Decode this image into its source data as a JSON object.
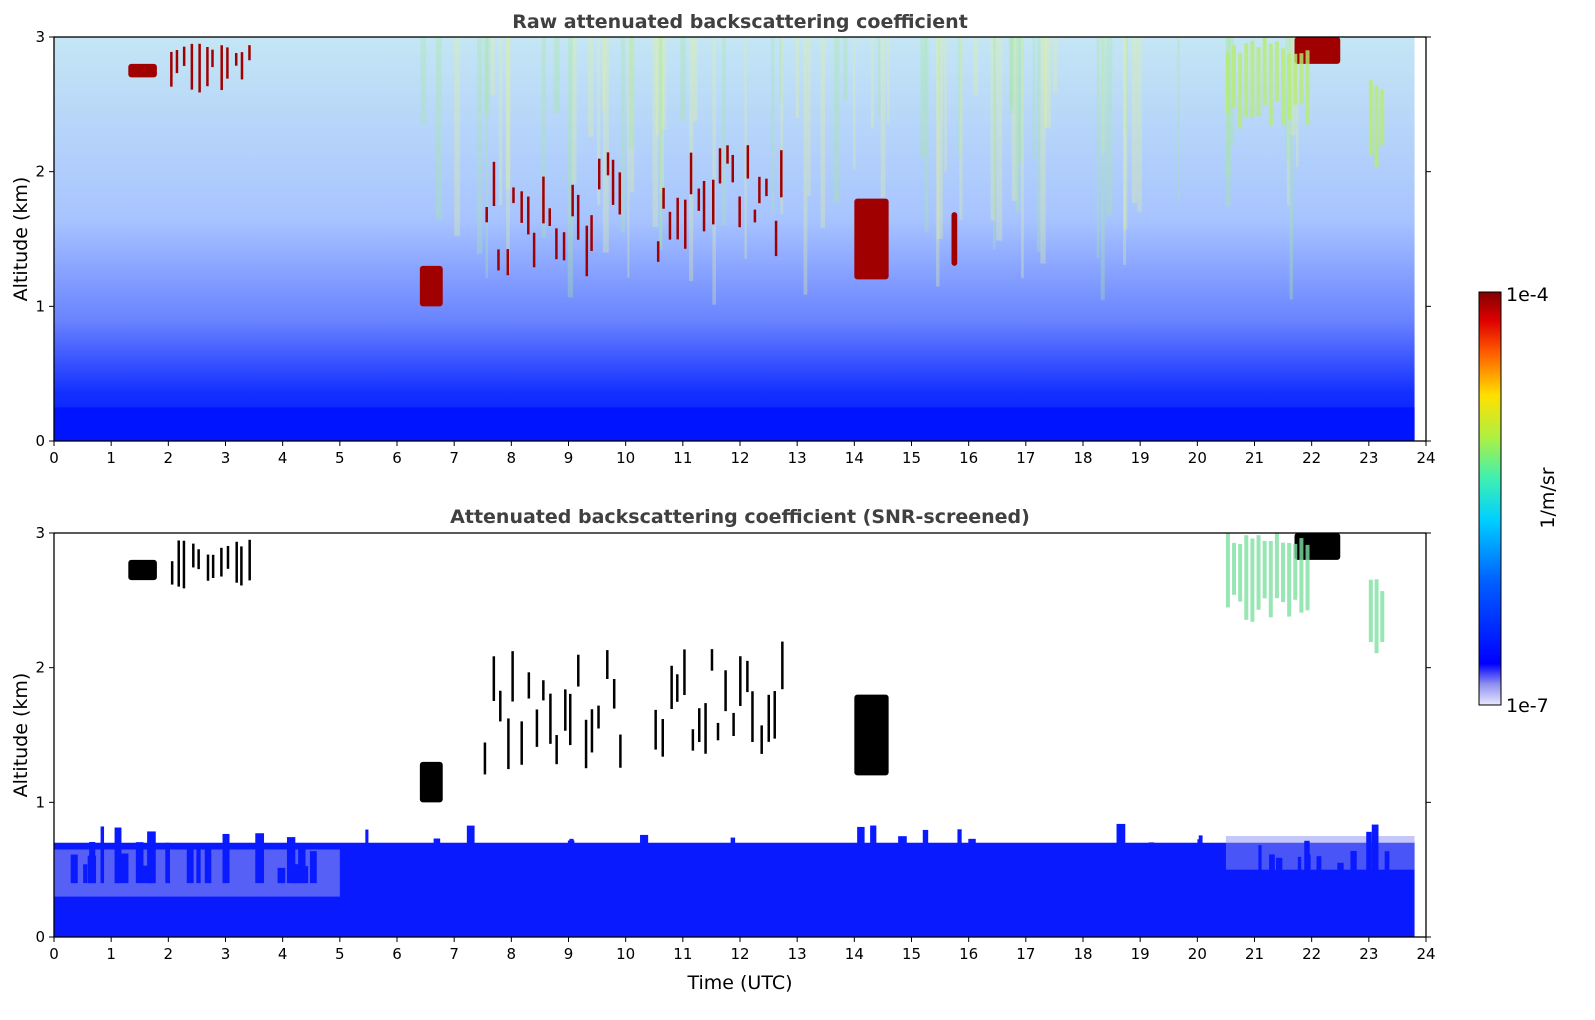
{
  "chart_data": [
    {
      "type": "heatmap",
      "title": "Raw attenuated backscattering coefficient",
      "xlabel": "",
      "ylabel": "Altitude (km)",
      "xlim": [
        0,
        24
      ],
      "ylim": [
        0,
        3
      ],
      "xticks": [
        "0",
        "1",
        "2",
        "3",
        "4",
        "5",
        "6",
        "7",
        "8",
        "9",
        "10",
        "11",
        "12",
        "13",
        "14",
        "15",
        "16",
        "17",
        "18",
        "19",
        "20",
        "21",
        "22",
        "23",
        "24"
      ],
      "yticks": [
        "0",
        "1",
        "2",
        "3"
      ],
      "scale": "log",
      "features": [
        {
          "kind": "cloud",
          "t": [
            1.3,
            1.8
          ],
          "alt": [
            2.7,
            2.8
          ],
          "level": "high"
        },
        {
          "kind": "cloud",
          "t": [
            2.0,
            3.5
          ],
          "alt": [
            2.6,
            2.95
          ],
          "level": "high"
        },
        {
          "kind": "cloud",
          "t": [
            6.4,
            6.8
          ],
          "alt": [
            1.0,
            1.3
          ],
          "level": "high"
        },
        {
          "kind": "cloud",
          "t": [
            7.5,
            10.0
          ],
          "alt": [
            1.2,
            2.2
          ],
          "level": "high"
        },
        {
          "kind": "cloud",
          "t": [
            10.5,
            12.8
          ],
          "alt": [
            1.3,
            2.2
          ],
          "level": "high"
        },
        {
          "kind": "cloud",
          "t": [
            14.0,
            14.6
          ],
          "alt": [
            1.2,
            1.8
          ],
          "level": "high"
        },
        {
          "kind": "cloud",
          "t": [
            15.7,
            15.8
          ],
          "alt": [
            1.3,
            1.7
          ],
          "level": "high"
        },
        {
          "kind": "cloud",
          "t": [
            21.7,
            22.5
          ],
          "alt": [
            2.8,
            3.0
          ],
          "level": "high"
        },
        {
          "kind": "cirrus",
          "t": [
            20.5,
            22.0
          ],
          "alt": [
            2.3,
            3.0
          ],
          "level": "medium"
        },
        {
          "kind": "cirrus",
          "t": [
            23.0,
            23.3
          ],
          "alt": [
            2.0,
            2.7
          ],
          "level": "medium"
        },
        {
          "kind": "boundary_layer",
          "t": [
            0,
            23.8
          ],
          "alt": [
            0,
            0.6
          ],
          "level": "low"
        }
      ]
    },
    {
      "type": "heatmap",
      "title": "Attenuated backscattering coefficient (SNR-screened)",
      "xlabel": "Time (UTC)",
      "ylabel": "Altitude (km)",
      "xlim": [
        0,
        24
      ],
      "ylim": [
        0,
        3
      ],
      "xticks": [
        "0",
        "1",
        "2",
        "3",
        "4",
        "5",
        "6",
        "7",
        "8",
        "9",
        "10",
        "11",
        "12",
        "13",
        "14",
        "15",
        "16",
        "17",
        "18",
        "19",
        "20",
        "21",
        "22",
        "23",
        "24"
      ],
      "yticks": [
        "0",
        "1",
        "2",
        "3"
      ],
      "scale": "log",
      "features": [
        {
          "kind": "cloud",
          "t": [
            1.3,
            1.8
          ],
          "alt": [
            2.65,
            2.8
          ],
          "level": "saturated"
        },
        {
          "kind": "cloud",
          "t": [
            2.0,
            3.5
          ],
          "alt": [
            2.6,
            2.95
          ],
          "level": "saturated"
        },
        {
          "kind": "cloud",
          "t": [
            6.4,
            6.8
          ],
          "alt": [
            1.0,
            1.3
          ],
          "level": "saturated"
        },
        {
          "kind": "cloud",
          "t": [
            7.5,
            10.0
          ],
          "alt": [
            1.2,
            2.2
          ],
          "level": "saturated"
        },
        {
          "kind": "cloud",
          "t": [
            10.5,
            12.8
          ],
          "alt": [
            1.3,
            2.2
          ],
          "level": "saturated"
        },
        {
          "kind": "cloud",
          "t": [
            14.0,
            14.6
          ],
          "alt": [
            1.2,
            1.8
          ],
          "level": "saturated"
        },
        {
          "kind": "cloud",
          "t": [
            21.7,
            22.5
          ],
          "alt": [
            2.8,
            3.0
          ],
          "level": "saturated"
        },
        {
          "kind": "cirrus",
          "t": [
            20.5,
            22.0
          ],
          "alt": [
            2.3,
            3.0
          ],
          "level": "medium"
        },
        {
          "kind": "cirrus",
          "t": [
            23.0,
            23.3
          ],
          "alt": [
            2.0,
            2.7
          ],
          "level": "medium"
        },
        {
          "kind": "boundary_layer",
          "t": [
            0,
            23.8
          ],
          "alt": [
            0,
            0.7
          ],
          "level": "low"
        }
      ]
    }
  ],
  "colorbar": {
    "max_label": "1e-4",
    "min_label": "1e-7",
    "unit_label": "1/m/sr",
    "colormap": "jet"
  },
  "colors": {
    "title": "#404040",
    "axis": "#000000",
    "cloud_saturated_raw": "#8b0000",
    "cloud_saturated_screened": "#000000",
    "boundary_layer": "#0a1aff"
  }
}
